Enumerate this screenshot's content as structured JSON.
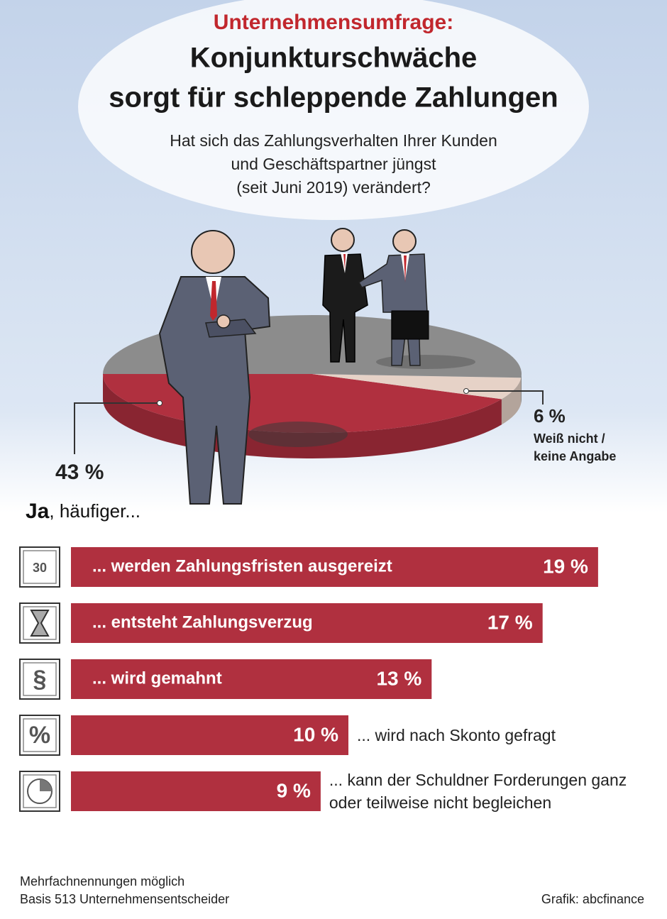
{
  "kicker": "Unternehmensumfrage:",
  "title": [
    "Konjunkturschwäche",
    "sorgt für schleppende Zahlungen"
  ],
  "subtitle": [
    "Hat sich das Zahlungsverhalten Ihrer Kunden",
    "und Geschäftspartner jüngst",
    "(seit Juni 2019) verändert?"
  ],
  "chart_data": [
    {
      "type": "pie",
      "categories": [
        null,
        "Weiß nicht / keine Angabe",
        null
      ],
      "values": [
        43,
        6,
        51
      ],
      "value_labels": [
        "43 %",
        "6 %",
        null
      ],
      "colors": [
        "#b0303f",
        "#e6d2c7",
        "#8c8c8c"
      ]
    },
    {
      "type": "bar",
      "title_bold": "Ja",
      "title_rest": ", häufiger...",
      "categories": [
        "... werden Zahlungsfristen ausgereizt",
        "... entsteht Zahlungsverzug",
        "... wird gemahnt",
        "... wird nach Skonto gefragt",
        "... kann der Schuldner Forderungen ganz oder teilweise nicht begleichen"
      ],
      "values": [
        19,
        17,
        13,
        10,
        9
      ],
      "value_labels": [
        "19 %",
        "17 %",
        "13 %",
        "10 %",
        "9 %"
      ],
      "icons": [
        "30",
        null,
        "§",
        "%",
        null
      ],
      "color": "#b0303f"
    }
  ],
  "footnotes": [
    "Mehrfachnennungen möglich",
    "Basis 513 Unternehmensentscheider"
  ],
  "credit": "Grafik: abcfinance"
}
